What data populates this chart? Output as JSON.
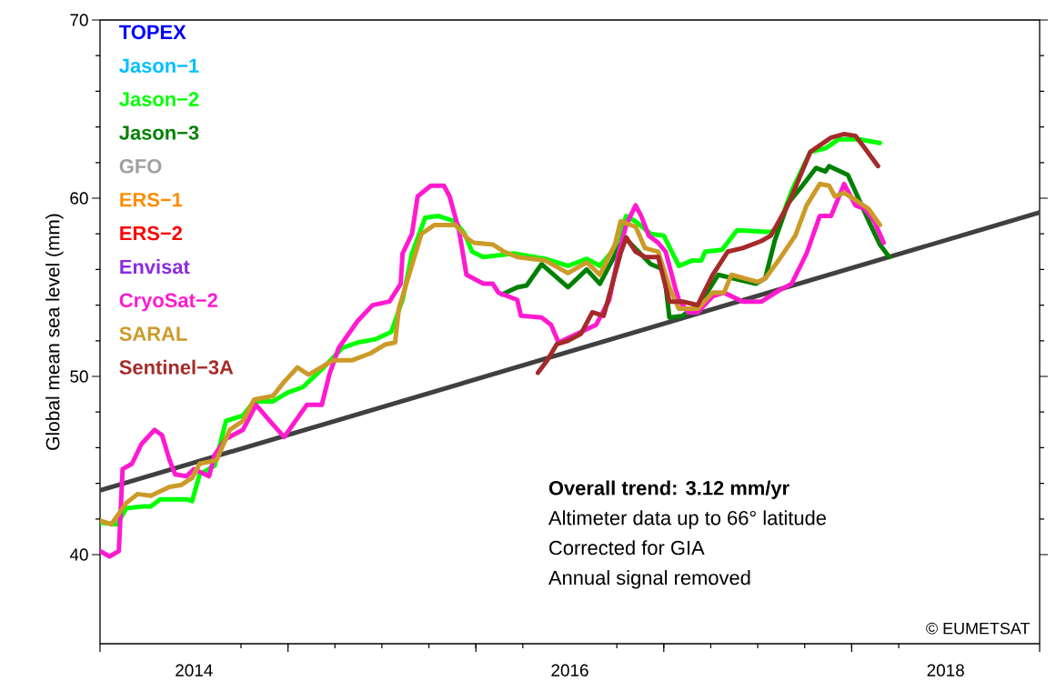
{
  "chart_data": {
    "type": "line",
    "ylabel": "Global mean sea level (mm)",
    "xlim": [
      2014,
      2019
    ],
    "ylim": [
      35,
      70
    ],
    "xticks": [
      {
        "value": 2014,
        "label": null
      },
      {
        "value": 2015,
        "label": null
      },
      {
        "value": 2016,
        "label": null
      },
      {
        "value": 2017,
        "label": null
      },
      {
        "value": 2018,
        "label": null
      },
      {
        "value": 2019,
        "label": null
      },
      {
        "value": 2014.5,
        "label": "2014"
      },
      {
        "value": 2016.5,
        "label": "2016"
      },
      {
        "value": 2018.5,
        "label": "2018"
      }
    ],
    "yticks": [
      40,
      50,
      60,
      70
    ],
    "legend": "top left",
    "series": [
      {
        "type": "line",
        "color": "#404040",
        "x": [
          2014,
          2019
        ],
        "values": [
          43.6,
          59.2
        ]
      },
      {
        "name": "TOPEX",
        "color": "#0000ff"
      },
      {
        "name": "Jason−1",
        "color": "#00bfff"
      },
      {
        "name": "Jason−2",
        "color": "#00ff00",
        "x": [
          2014.0,
          2014.09,
          2014.14,
          2014.23,
          2014.27,
          2014.32,
          2014.46,
          2014.49,
          2014.53,
          2014.61,
          2014.67,
          2014.76,
          2014.82,
          2014.92,
          2015.0,
          2015.08,
          2015.18,
          2015.29,
          2015.37,
          2015.47,
          2015.55,
          2015.61,
          2015.66,
          2015.73,
          2015.8,
          2015.89,
          2015.94,
          2015.98,
          2016.04,
          2016.2,
          2016.37,
          2016.49,
          2016.59,
          2016.66,
          2016.74,
          2016.8,
          2016.85,
          2016.93,
          2017.0,
          2017.08,
          2017.15,
          2017.2,
          2017.22,
          2017.31,
          2017.39,
          2017.57,
          2017.61,
          2017.68,
          2017.78,
          2017.86,
          2017.93,
          2018.04,
          2018.15
        ],
        "values": [
          41.8,
          41.7,
          42.6,
          42.7,
          42.7,
          43.1,
          43.1,
          43.0,
          44.5,
          45.0,
          47.5,
          47.8,
          48.6,
          48.6,
          49.1,
          49.4,
          50.4,
          51.6,
          51.9,
          52.1,
          52.5,
          54.3,
          56.9,
          58.9,
          59.0,
          58.7,
          58.0,
          57.0,
          56.7,
          56.9,
          56.6,
          56.2,
          56.6,
          56.2,
          57.2,
          59.0,
          58.7,
          58.0,
          57.9,
          56.2,
          56.5,
          56.5,
          57.0,
          57.1,
          58.2,
          58.1,
          58.4,
          60.4,
          62.6,
          62.8,
          63.3,
          63.3,
          63.1
        ]
      },
      {
        "name": "Jason−3",
        "color": "#008000",
        "x": [
          2016.14,
          2016.22,
          2016.27,
          2016.35,
          2016.49,
          2016.59,
          2016.66,
          2016.77,
          2016.8,
          2016.93,
          2017.0,
          2017.03,
          2017.1,
          2017.2,
          2017.29,
          2017.49,
          2017.54,
          2017.59,
          2017.66,
          2017.73,
          2017.81,
          2017.86,
          2017.88,
          2017.98,
          2018.04,
          2018.1,
          2018.15,
          2018.2
        ],
        "values": [
          54.6,
          55.0,
          55.1,
          56.3,
          55.0,
          56.0,
          55.2,
          57.4,
          57.7,
          56.3,
          56.0,
          53.3,
          53.4,
          54.2,
          55.7,
          55.2,
          55.5,
          57.6,
          59.7,
          60.6,
          61.7,
          61.5,
          61.8,
          61.3,
          59.9,
          58.5,
          57.4,
          56.7
        ]
      },
      {
        "name": "GFO",
        "color": "#a0a0a0"
      },
      {
        "name": "ERS−1",
        "color": "#ff8c00"
      },
      {
        "name": "ERS−2",
        "color": "#ff0000"
      },
      {
        "name": "Envisat",
        "color": "#8a2be2"
      },
      {
        "name": "CryoSat−2",
        "color": "#ff1ad0",
        "x": [
          2014.0,
          2014.05,
          2014.1,
          2014.12,
          2014.17,
          2014.22,
          2014.29,
          2014.33,
          2014.37,
          2014.4,
          2014.46,
          2014.5,
          2014.58,
          2014.61,
          2014.67,
          2014.76,
          2014.83,
          2014.92,
          2014.98,
          2015.1,
          2015.18,
          2015.22,
          2015.27,
          2015.37,
          2015.45,
          2015.54,
          2015.6,
          2015.61,
          2015.66,
          2015.69,
          2015.76,
          2015.83,
          2015.86,
          2015.91,
          2015.95,
          2016.04,
          2016.09,
          2016.12,
          2016.22,
          2016.24,
          2016.35,
          2016.4,
          2016.44,
          2016.64,
          2016.71,
          2016.76,
          2016.8,
          2016.85,
          2016.88,
          2016.92,
          2016.97,
          2017.01,
          2017.06,
          2017.08,
          2017.13,
          2017.18,
          2017.26,
          2017.32,
          2017.42,
          2017.52,
          2017.61,
          2017.68,
          2017.76,
          2017.83,
          2017.89,
          2017.96,
          2018.02,
          2018.07,
          2018.12,
          2018.17
        ],
        "values": [
          40.2,
          39.9,
          40.2,
          44.8,
          45.1,
          46.2,
          47.0,
          46.7,
          45.3,
          44.5,
          44.4,
          44.8,
          44.4,
          45.6,
          46.5,
          47.0,
          48.4,
          47.3,
          46.6,
          48.4,
          48.4,
          50.1,
          51.6,
          53.1,
          54.0,
          54.2,
          55.2,
          56.9,
          58.0,
          60.1,
          60.7,
          60.7,
          60.1,
          58.2,
          55.7,
          55.2,
          55.2,
          54.7,
          54.3,
          53.4,
          53.3,
          52.9,
          51.9,
          52.9,
          54.3,
          56.9,
          58.5,
          59.6,
          59.0,
          57.9,
          57.5,
          57.0,
          55.0,
          54.3,
          53.6,
          53.6,
          54.5,
          54.7,
          54.2,
          54.2,
          54.8,
          55.2,
          56.9,
          59.0,
          59.0,
          60.8,
          59.6,
          59.4,
          58.7,
          57.5
        ]
      },
      {
        "name": "SARAL",
        "color": "#cc9a28",
        "x": [
          2014.0,
          2014.06,
          2014.14,
          2014.2,
          2014.27,
          2014.37,
          2014.43,
          2014.49,
          2014.53,
          2014.62,
          2014.69,
          2014.76,
          2014.82,
          2014.92,
          2014.98,
          2015.05,
          2015.11,
          2015.24,
          2015.34,
          2015.44,
          2015.52,
          2015.57,
          2015.59,
          2015.63,
          2015.71,
          2015.78,
          2015.89,
          2015.96,
          2015.99,
          2016.09,
          2016.15,
          2016.22,
          2016.37,
          2016.49,
          2016.59,
          2016.66,
          2016.74,
          2016.77,
          2016.85,
          2016.9,
          2016.97,
          2017.03,
          2017.08,
          2017.18,
          2017.26,
          2017.32,
          2017.36,
          2017.5,
          2017.54,
          2017.61,
          2017.7,
          2017.76,
          2017.83,
          2017.88,
          2017.91,
          2017.96,
          2018.02,
          2018.09,
          2018.15
        ],
        "values": [
          41.9,
          41.7,
          42.9,
          43.4,
          43.3,
          43.8,
          43.9,
          44.3,
          45.1,
          45.3,
          47.0,
          47.5,
          48.7,
          48.9,
          49.7,
          50.5,
          50.1,
          50.9,
          50.9,
          51.3,
          51.8,
          51.9,
          53.8,
          55.2,
          58.0,
          58.5,
          58.5,
          57.7,
          57.5,
          57.4,
          57.0,
          56.7,
          56.5,
          55.8,
          56.4,
          55.7,
          57.4,
          58.7,
          58.4,
          57.2,
          57.0,
          55.0,
          53.8,
          53.8,
          54.7,
          54.7,
          55.7,
          55.3,
          55.5,
          56.5,
          57.9,
          59.6,
          60.8,
          60.7,
          60.1,
          60.3,
          59.9,
          59.4,
          58.5
        ]
      },
      {
        "name": "Sentinel−3A",
        "color": "#a52a2a",
        "x": [
          2016.33,
          2016.38,
          2016.43,
          2016.49,
          2016.56,
          2016.62,
          2016.68,
          2016.77,
          2016.8,
          2016.85,
          2016.9,
          2016.97,
          2017.03,
          2017.1,
          2017.18,
          2017.26,
          2017.34,
          2017.42,
          2017.52,
          2017.57,
          2017.66,
          2017.78,
          2017.89,
          2017.96,
          2018.02,
          2018.07,
          2018.14
        ],
        "values": [
          50.2,
          50.9,
          51.8,
          52.0,
          52.4,
          53.6,
          53.4,
          56.9,
          57.8,
          57.0,
          56.7,
          56.7,
          54.2,
          54.2,
          54.0,
          55.7,
          57.0,
          57.2,
          57.6,
          57.9,
          59.6,
          62.6,
          63.4,
          63.6,
          63.5,
          62.8,
          61.8
        ]
      }
    ],
    "annotations": [
      "Overall trend: 3.12 mm/yr",
      "Altimeter data up to 66° latitude",
      "Corrected for GIA",
      "Annual signal removed",
      "© EUMETSAT"
    ]
  }
}
